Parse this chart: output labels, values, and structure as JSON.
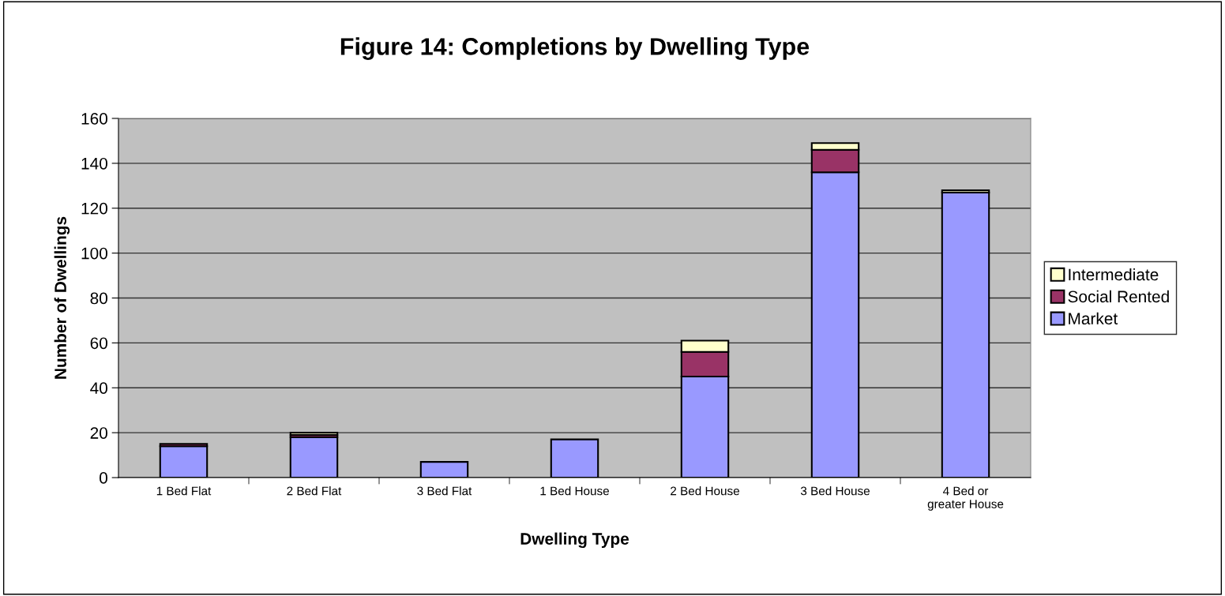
{
  "chart_data": {
    "type": "bar",
    "stacked": true,
    "title": "Figure 14: Completions by Dwelling Type",
    "xlabel": "Dwelling Type",
    "ylabel": "Number of Dwellings",
    "categories": [
      "1 Bed Flat",
      "2 Bed Flat",
      "3 Bed Flat",
      "1 Bed House",
      "2 Bed House",
      "3 Bed House",
      "4 Bed or\ngreater House"
    ],
    "series": [
      {
        "name": "Market",
        "color": "#9999ff",
        "values": [
          14,
          18,
          7,
          17,
          45,
          136,
          127
        ]
      },
      {
        "name": "Social Rented",
        "color": "#993366",
        "values": [
          1,
          1,
          null,
          null,
          11,
          10,
          null
        ]
      },
      {
        "name": "Intermediate",
        "color": "#ffffcc",
        "values": [
          null,
          1,
          null,
          null,
          5,
          3,
          1
        ]
      }
    ],
    "ylim": [
      0,
      160
    ],
    "yticks": [
      0,
      20,
      40,
      60,
      80,
      100,
      120,
      140,
      160
    ],
    "grid": "y",
    "legend": "right"
  }
}
